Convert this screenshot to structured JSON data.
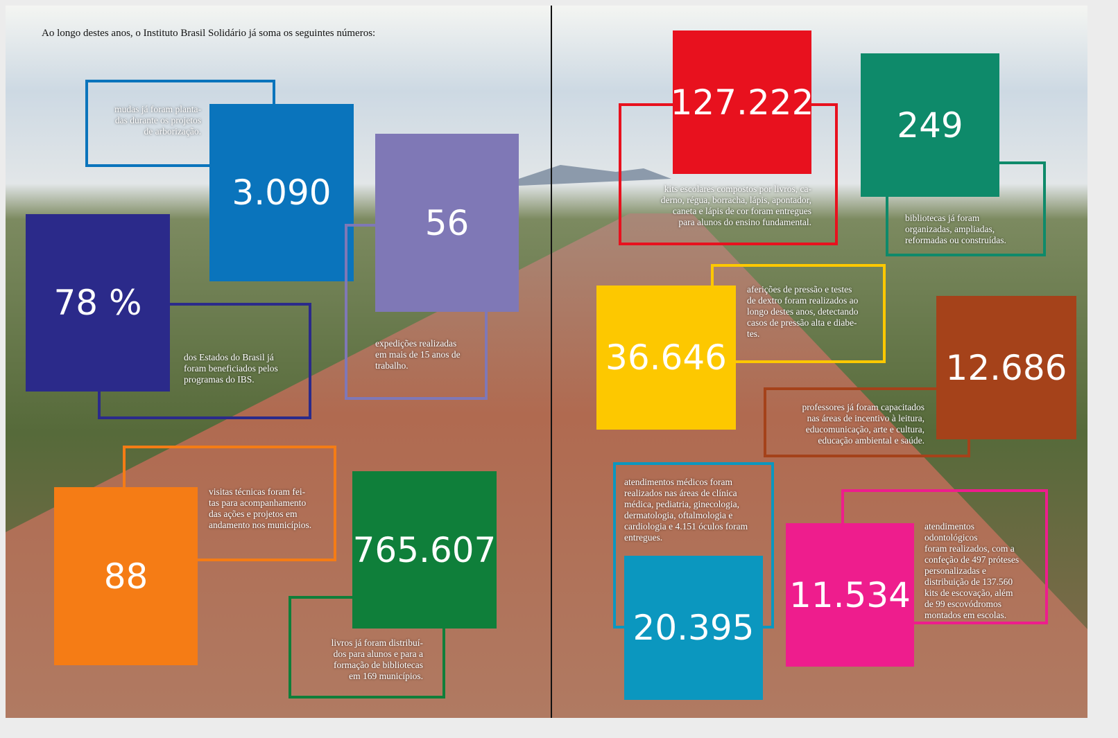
{
  "intro": "Ao longo destes anos, o Instituto Brasil Solidário já soma os seguintes números:",
  "items": [
    {
      "number": "3.090",
      "color": "#0a74bc",
      "description": [
        "mudas já foram planta-",
        "das durante os projetos",
        "de arborização."
      ]
    },
    {
      "number": "56",
      "color": "#7f78b6",
      "description": [
        "expedições realizadas",
        "em mais de 15 anos de",
        "trabalho."
      ]
    },
    {
      "number": "78 %",
      "color": "#2b2a8a",
      "description": [
        "dos Estados do Brasil já",
        "foram beneficiados pelos",
        "programas do IBS."
      ]
    },
    {
      "number": "88",
      "color": "#f57c15",
      "description": [
        "visitas técnicas foram fei-",
        "tas para acompanhamento",
        "das ações e projetos em",
        "andamento nos municípios."
      ]
    },
    {
      "number": "765.607",
      "color": "#0f7f3a",
      "description": [
        "livros já foram distribuí-",
        "dos para alunos e para a",
        "formação de bibliotecas",
        "em 169 municípios."
      ]
    },
    {
      "number": "127.222",
      "color": "#e8111e",
      "description": [
        "kits escolares compostos por livros, ca-",
        "derno, régua, borracha, lápis, apontador,",
        "caneta e lápis de cor foram entregues",
        "para alunos do ensino fundamental."
      ]
    },
    {
      "number": "249",
      "color": "#0e8a6a",
      "description": [
        "bibliotecas já foram",
        "organizadas, ampliadas,",
        "reformadas ou construídas."
      ]
    },
    {
      "number": "36.646",
      "color": "#fdc800",
      "description": [
        "aferições de pressão e testes",
        "de dextro foram realizados ao",
        "longo destes anos, detectando",
        "casos de pressão alta e diabe-",
        "tes."
      ]
    },
    {
      "number": "12.686",
      "color": "#a5421a",
      "description": [
        "professores já foram capacitados",
        "nas áreas de incentivo à leitura,",
        "educomunicação, arte e cultura,",
        "educação ambiental e saúde."
      ]
    },
    {
      "number": "20.395",
      "color": "#0b97bf",
      "description": [
        "atendimentos médicos foram",
        "realizados nas áreas de clínica",
        "médica, pediatria, ginecologia,",
        "dermatologia, oftalmologia e",
        "cardiologia e 4.151 óculos foram",
        "entregues."
      ]
    },
    {
      "number": "11.534",
      "color": "#ee1d8d",
      "description": [
        "atendimentos",
        "odontológicos",
        "foram realizados, com a",
        "confeção de 497 próteses",
        "personalizadas e",
        "distribuição de 137.560",
        "kits de escovação, além",
        "de 99 escovódromos",
        "montados em escolas."
      ]
    }
  ]
}
